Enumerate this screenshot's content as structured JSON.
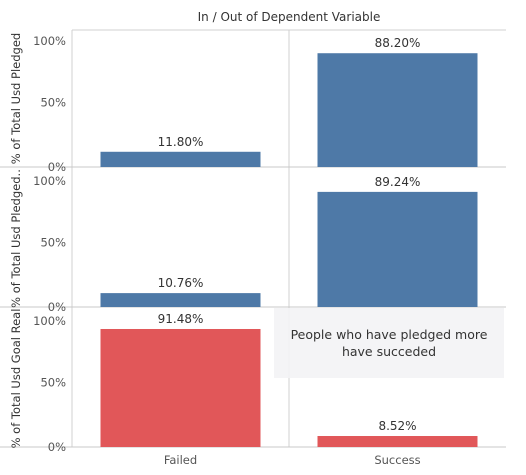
{
  "chart_data": {
    "type": "bar",
    "title": "In / Out of Dependent Variable",
    "categories": [
      "Failed",
      "Success"
    ],
    "ylim": [
      0,
      100
    ],
    "y_ticks": [
      "0%",
      "50%",
      "100%"
    ],
    "panels": [
      {
        "ylabel": "% of Total Usd Pledged",
        "values": [
          11.8,
          88.2
        ],
        "labels": [
          "11.80%",
          "88.20%"
        ],
        "color": "#4e79a7"
      },
      {
        "ylabel": "% of Total Usd Pledged..",
        "values": [
          10.76,
          89.24
        ],
        "labels": [
          "10.76%",
          "89.24%"
        ],
        "color": "#4e79a7"
      },
      {
        "ylabel": "% of Total Usd Goal Real",
        "values": [
          91.48,
          8.52
        ],
        "labels": [
          "91.48%",
          "8.52%"
        ],
        "color": "#e15759"
      }
    ],
    "annotation": "People who have pledged more have succeded"
  }
}
